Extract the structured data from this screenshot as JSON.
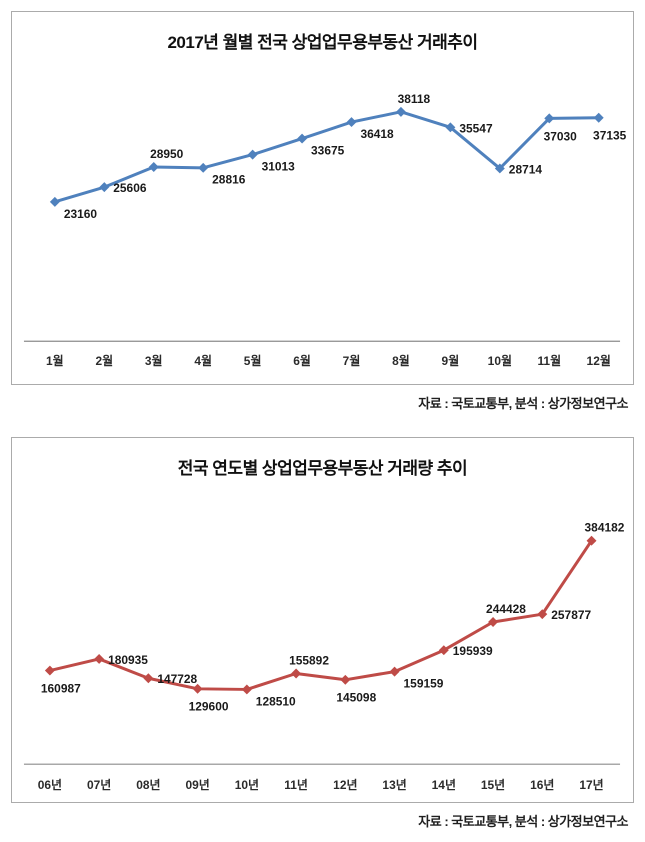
{
  "page": {
    "background": "#ffffff"
  },
  "chart_data": [
    {
      "type": "line",
      "title": "2017년 월별 전국 상업업무용부동산 거래추이",
      "categories": [
        "1월",
        "2월",
        "3월",
        "4월",
        "5월",
        "6월",
        "7월",
        "8월",
        "9월",
        "10월",
        "11월",
        "12월"
      ],
      "values": [
        23160,
        25606,
        28950,
        28816,
        31013,
        33675,
        36418,
        38118,
        35547,
        28714,
        37030,
        37135
      ],
      "data_labels": true,
      "label_positions": [
        "below-right",
        "right",
        "above",
        "below-right",
        "below-right",
        "below-right",
        "below-right",
        "above",
        "right",
        "right",
        "below",
        "below"
      ],
      "line_color": "#4f81bd",
      "marker": "diamond",
      "marker_color": "#4f81bd",
      "ylim": [
        0,
        40000
      ],
      "grid": false,
      "legend": "none",
      "axis_color": "#8c8c8c",
      "label_color": "#1a1a1a",
      "source_note": "자료 : 국토교통부, 분석 : 상가정보연구소"
    },
    {
      "type": "line",
      "title": "전국 연도별 상업업무용부동산 거래량 추이",
      "categories": [
        "06년",
        "07년",
        "08년",
        "09년",
        "10년",
        "11년",
        "12년",
        "13년",
        "14년",
        "15년",
        "16년",
        "17년"
      ],
      "values": [
        160987,
        180935,
        147728,
        129600,
        128510,
        155892,
        145098,
        159159,
        195939,
        244428,
        257877,
        384182
      ],
      "data_labels": true,
      "label_positions": [
        "below",
        "right",
        "right",
        "below",
        "below-right",
        "above",
        "below",
        "below-right",
        "right",
        "above",
        "right",
        "above"
      ],
      "line_color": "#bf4b47",
      "marker": "diamond",
      "marker_color": "#bf4b47",
      "ylim": [
        0,
        400000
      ],
      "grid": false,
      "legend": "none",
      "axis_color": "#8c8c8c",
      "label_color": "#1a1a1a",
      "source_note": "자료 : 국토교통부, 분석 : 상가정보연구소"
    }
  ]
}
